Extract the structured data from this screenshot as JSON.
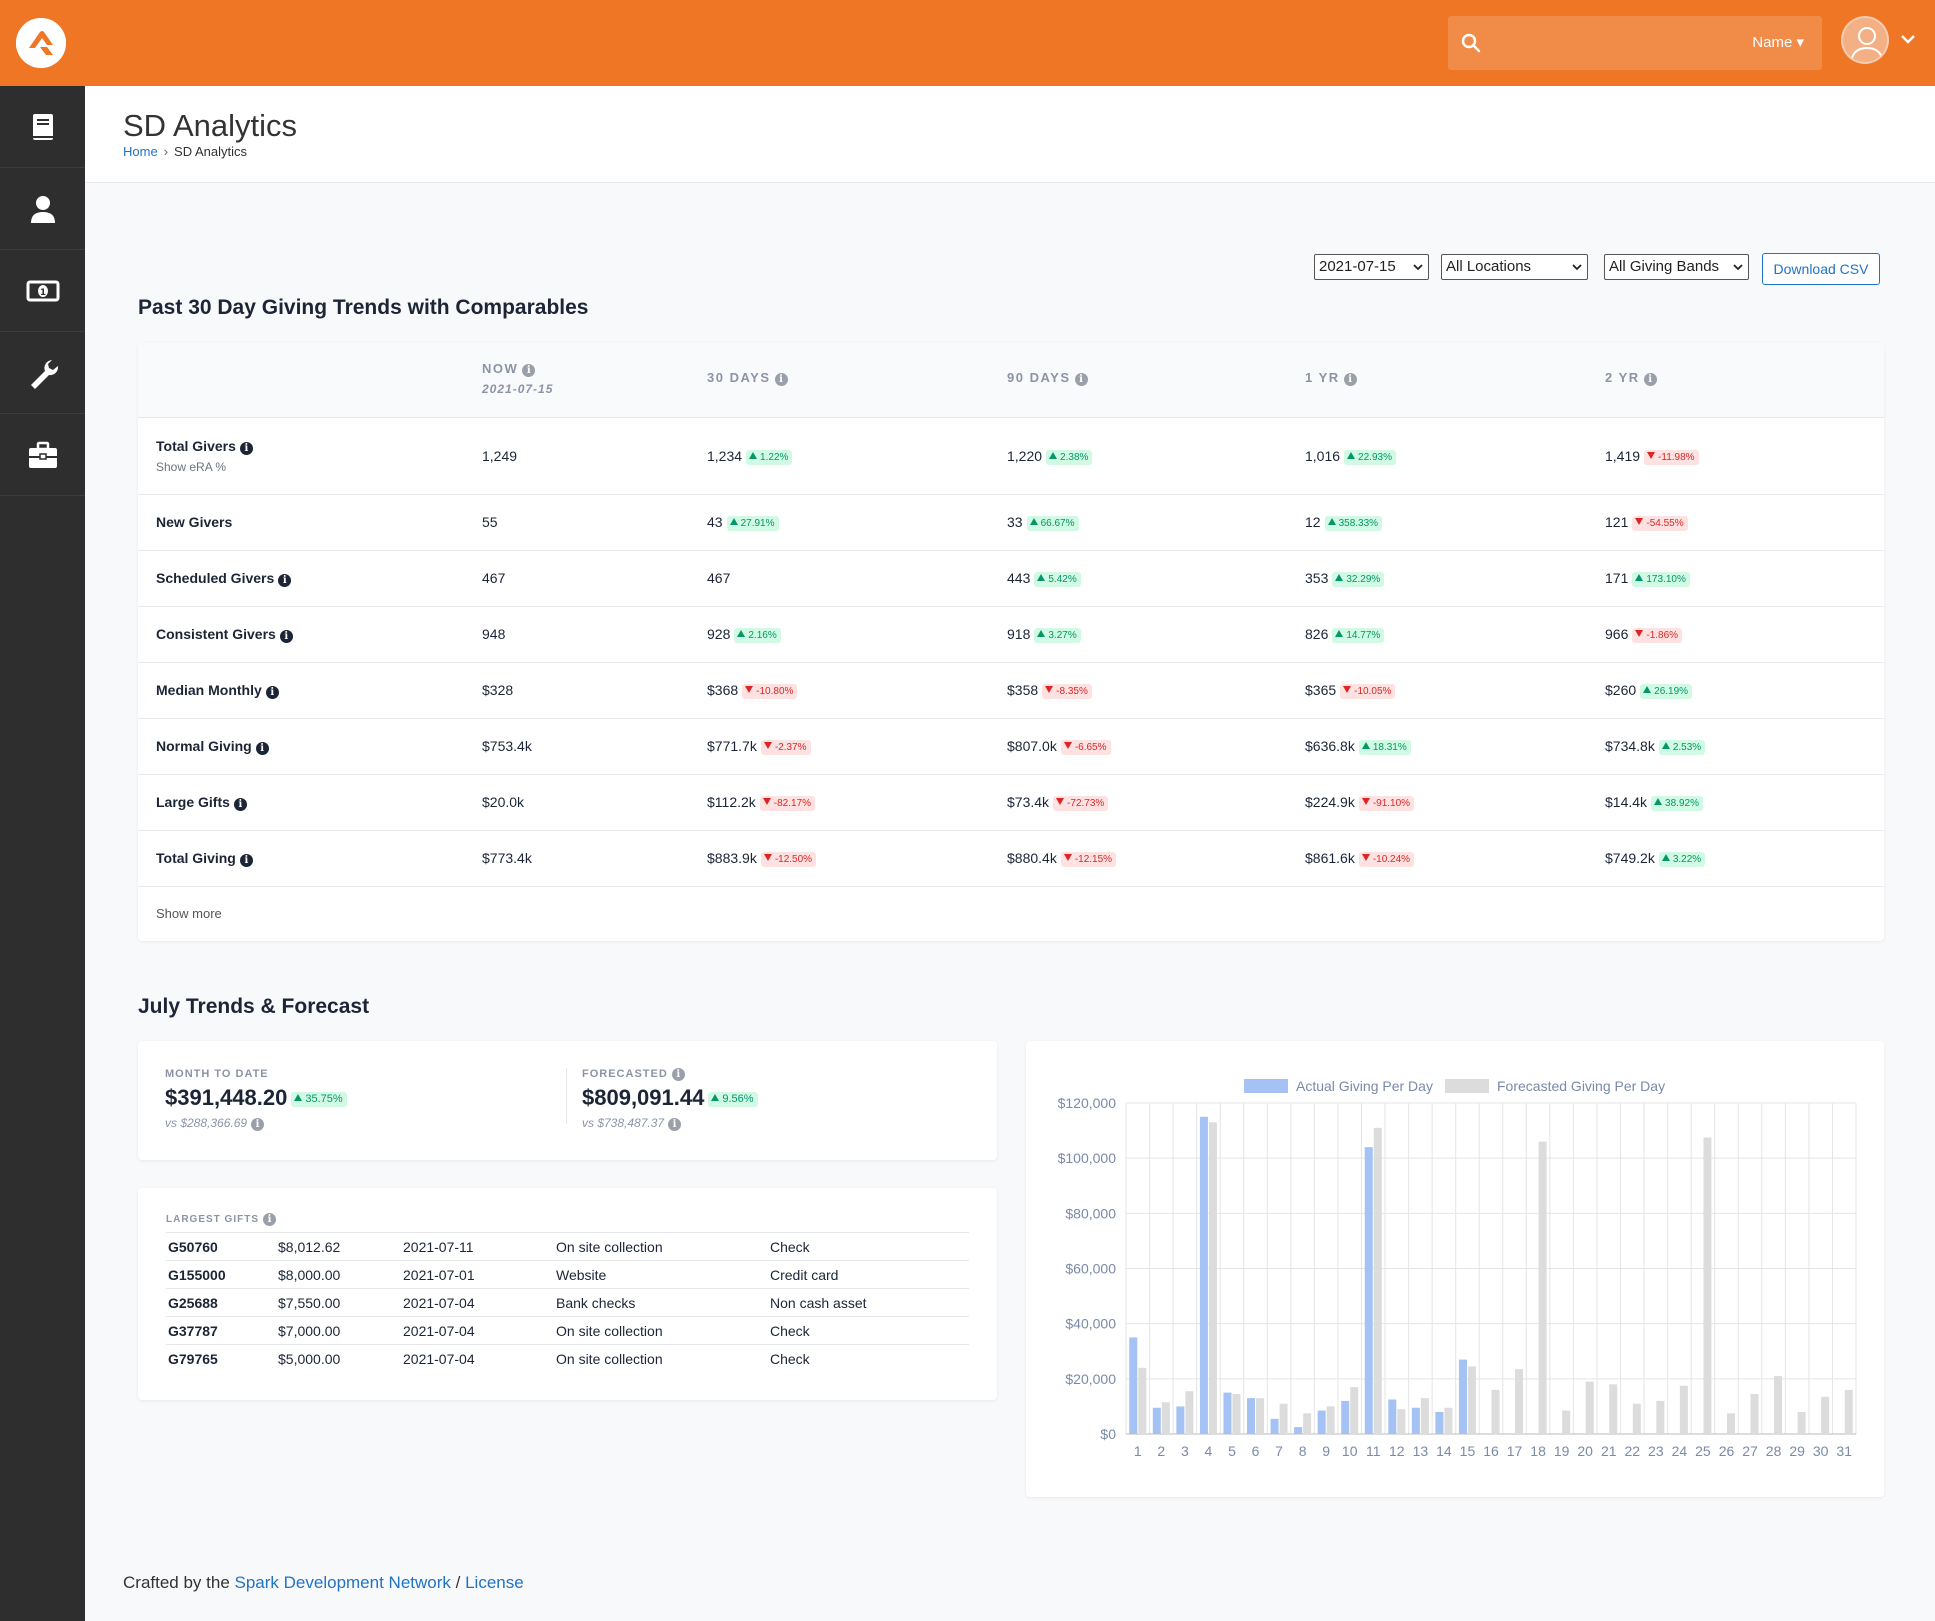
{
  "header": {
    "search_scope": "Name",
    "icons": [
      "rock-logo-icon",
      "search-icon",
      "avatar-icon",
      "chevron-down-icon"
    ]
  },
  "sidebar": {
    "items": [
      {
        "icon": "book-icon"
      },
      {
        "icon": "person-icon"
      },
      {
        "icon": "money-icon"
      },
      {
        "icon": "wrench-icon"
      },
      {
        "icon": "briefcase-icon"
      }
    ]
  },
  "page": {
    "title": "SD Analytics",
    "breadcrumb_home": "Home",
    "breadcrumb_current": "SD Analytics"
  },
  "filters": {
    "date": "2021-07-15",
    "location": "All Locations",
    "band": "All Giving Bands",
    "download_label": "Download CSV"
  },
  "trends": {
    "title": "Past 30 Day Giving Trends with Comparables",
    "columns": [
      {
        "label": "NOW",
        "sub": "2021-07-15"
      },
      {
        "label": "30 DAYS"
      },
      {
        "label": "90 DAYS"
      },
      {
        "label": "1 YR"
      },
      {
        "label": "2 YR"
      }
    ],
    "rows": [
      {
        "label": "Total Givers",
        "info": true,
        "sub": "Show eRA %",
        "cells": [
          {
            "v": "1,249"
          },
          {
            "v": "1,234",
            "d": "1.22%",
            "up": true
          },
          {
            "v": "1,220",
            "d": "2.38%",
            "up": true
          },
          {
            "v": "1,016",
            "d": "22.93%",
            "up": true
          },
          {
            "v": "1,419",
            "d": "-11.98%",
            "up": false
          }
        ]
      },
      {
        "label": "New Givers",
        "info": false,
        "cells": [
          {
            "v": "55"
          },
          {
            "v": "43",
            "d": "27.91%",
            "up": true
          },
          {
            "v": "33",
            "d": "66.67%",
            "up": true
          },
          {
            "v": "12",
            "d": "358.33%",
            "up": true
          },
          {
            "v": "121",
            "d": "-54.55%",
            "up": false
          }
        ]
      },
      {
        "label": "Scheduled Givers",
        "info": true,
        "cells": [
          {
            "v": "467"
          },
          {
            "v": "467"
          },
          {
            "v": "443",
            "d": "5.42%",
            "up": true
          },
          {
            "v": "353",
            "d": "32.29%",
            "up": true
          },
          {
            "v": "171",
            "d": "173.10%",
            "up": true
          }
        ]
      },
      {
        "label": "Consistent Givers",
        "info": true,
        "cells": [
          {
            "v": "948"
          },
          {
            "v": "928",
            "d": "2.16%",
            "up": true
          },
          {
            "v": "918",
            "d": "3.27%",
            "up": true
          },
          {
            "v": "826",
            "d": "14.77%",
            "up": true
          },
          {
            "v": "966",
            "d": "-1.86%",
            "up": false
          }
        ]
      },
      {
        "label": "Median Monthly",
        "info": true,
        "cells": [
          {
            "v": "$328"
          },
          {
            "v": "$368",
            "d": "-10.80%",
            "up": false
          },
          {
            "v": "$358",
            "d": "-8.35%",
            "up": false
          },
          {
            "v": "$365",
            "d": "-10.05%",
            "up": false
          },
          {
            "v": "$260",
            "d": "26.19%",
            "up": true
          }
        ]
      },
      {
        "label": "Normal Giving",
        "info": true,
        "cells": [
          {
            "v": "$753.4k"
          },
          {
            "v": "$771.7k",
            "d": "-2.37%",
            "up": false
          },
          {
            "v": "$807.0k",
            "d": "-6.65%",
            "up": false
          },
          {
            "v": "$636.8k",
            "d": "18.31%",
            "up": true
          },
          {
            "v": "$734.8k",
            "d": "2.53%",
            "up": true
          }
        ]
      },
      {
        "label": "Large Gifts",
        "info": true,
        "cells": [
          {
            "v": "$20.0k"
          },
          {
            "v": "$112.2k",
            "d": "-82.17%",
            "up": false
          },
          {
            "v": "$73.4k",
            "d": "-72.73%",
            "up": false
          },
          {
            "v": "$224.9k",
            "d": "-91.10%",
            "up": false
          },
          {
            "v": "$14.4k",
            "d": "38.92%",
            "up": true
          }
        ]
      },
      {
        "label": "Total Giving",
        "info": true,
        "cells": [
          {
            "v": "$773.4k"
          },
          {
            "v": "$883.9k",
            "d": "-12.50%",
            "up": false
          },
          {
            "v": "$880.4k",
            "d": "-12.15%",
            "up": false
          },
          {
            "v": "$861.6k",
            "d": "-10.24%",
            "up": false
          },
          {
            "v": "$749.2k",
            "d": "3.22%",
            "up": true
          }
        ]
      }
    ],
    "show_more": "Show more"
  },
  "july": {
    "title": "July Trends & Forecast",
    "mtd": {
      "label": "MONTH TO DATE",
      "value": "$391,448.20",
      "delta": "35.75%",
      "vs": "vs $288,366.69"
    },
    "forecast": {
      "label": "FORECASTED",
      "value": "$809,091.44",
      "delta": "9.56%",
      "vs": "vs $738,487.37"
    }
  },
  "largest_gifts": {
    "label": "LARGEST GIFTS",
    "rows": [
      [
        "G50760",
        "$8,012.62",
        "2021-07-11",
        "On site collection",
        "Check"
      ],
      [
        "G155000",
        "$8,000.00",
        "2021-07-01",
        "Website",
        "Credit card"
      ],
      [
        "G25688",
        "$7,550.00",
        "2021-07-04",
        "Bank checks",
        "Non cash asset"
      ],
      [
        "G37787",
        "$7,000.00",
        "2021-07-04",
        "On site collection",
        "Check"
      ],
      [
        "G79765",
        "$5,000.00",
        "2021-07-04",
        "On site collection",
        "Check"
      ]
    ]
  },
  "chart_data": {
    "type": "bar",
    "categories": [
      "1",
      "2",
      "3",
      "4",
      "5",
      "6",
      "7",
      "8",
      "9",
      "10",
      "11",
      "12",
      "13",
      "14",
      "15",
      "16",
      "17",
      "18",
      "19",
      "20",
      "21",
      "22",
      "23",
      "24",
      "25",
      "26",
      "27",
      "28",
      "29",
      "30",
      "31"
    ],
    "series": [
      {
        "name": "Actual Giving Per Day",
        "color": "#a4c2f4",
        "values": [
          35000,
          9500,
          10000,
          115000,
          15000,
          13000,
          5500,
          2500,
          8500,
          12000,
          104000,
          12500,
          9500,
          8000,
          27000,
          0,
          0,
          0,
          0,
          0,
          0,
          0,
          0,
          0,
          0,
          0,
          0,
          0,
          0,
          0,
          0
        ]
      },
      {
        "name": "Forecasted Giving Per Day",
        "color": "#dcdcdc",
        "values": [
          24000,
          11500,
          15500,
          113000,
          14500,
          13000,
          11000,
          7500,
          10000,
          17000,
          111000,
          9000,
          13000,
          9500,
          24500,
          16000,
          23500,
          106000,
          8500,
          19000,
          18000,
          11000,
          12000,
          17500,
          107500,
          7500,
          14500,
          21000,
          8000,
          13500,
          16000
        ]
      }
    ],
    "ylim": [
      0,
      120000
    ],
    "yticks": [
      "$0",
      "$20,000",
      "$40,000",
      "$60,000",
      "$80,000",
      "$100,000",
      "$120,000"
    ],
    "grid": true,
    "legend": "top-center"
  },
  "footer": {
    "prefix": "Crafted by the",
    "link": "Spark Development Network",
    "sep": "/",
    "license": "License"
  }
}
